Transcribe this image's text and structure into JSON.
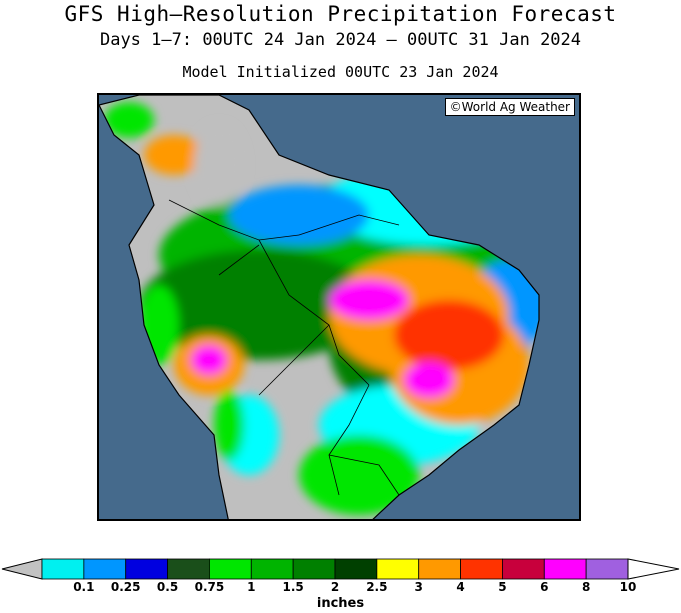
{
  "title": "GFS High–Resolution Precipitation Forecast",
  "subtitle": "Days 1–7: 00UTC 24 Jan 2024 – 00UTC 31 Jan 2024",
  "init_line": "Model Initialized 00UTC 23 Jan 2024",
  "credit": "©World Ag Weather",
  "colors": {
    "ocean": "#456a8c",
    "land_dry": "#c2c2c2",
    "levels": [
      "#00ffff",
      "#0096ff",
      "#0000e6",
      "#1e4a1e",
      "#00e600",
      "#00b400",
      "#007800",
      "#004b00",
      "#ffff00",
      "#ff9900",
      "#ff3300",
      "#cc0033",
      "#ff00ff",
      "#b266ff",
      "#ffffff"
    ]
  },
  "legend": {
    "units": "inches",
    "ticks": [
      "0.1",
      "0.25",
      "0.5",
      "0.75",
      "1",
      "1.5",
      "2",
      "2.5",
      "3",
      "4",
      "5",
      "6",
      "8",
      "10"
    ],
    "colors": [
      "#00f0f0",
      "#0096ff",
      "#0000e0",
      "#1a4f1a",
      "#00e600",
      "#00b400",
      "#008000",
      "#004000",
      "#ffff00",
      "#ff9900",
      "#ff3300",
      "#c8003c",
      "#ff00ff",
      "#a060e0"
    ]
  }
}
